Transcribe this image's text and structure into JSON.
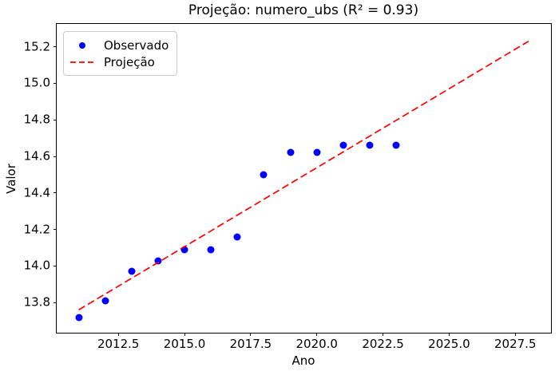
{
  "chart_data": {
    "type": "scatter",
    "title": "Projeção: numero_ubs (R² = 0.93)",
    "xlabel": "Ano",
    "ylabel": "Valor",
    "xlim": [
      2010.17,
      2028.85
    ],
    "ylim": [
      13.635,
      15.325
    ],
    "xticks": [
      2012.5,
      2015.0,
      2017.5,
      2020.0,
      2022.5,
      2025.0,
      2027.5
    ],
    "yticks": [
      13.8,
      14.0,
      14.2,
      14.4,
      14.6,
      14.8,
      15.0,
      15.2
    ],
    "grid": false,
    "legend_position": "upper left",
    "background_color": "#ffffff",
    "series": [
      {
        "name": "Observado",
        "type": "scatter",
        "marker": "circle",
        "color": "#0000ff",
        "x": [
          2011,
          2012,
          2013,
          2014,
          2015,
          2016,
          2017,
          2018,
          2019,
          2020,
          2021,
          2022,
          2023
        ],
        "y": [
          13.72,
          13.81,
          13.97,
          14.03,
          14.09,
          14.09,
          14.16,
          14.5,
          14.62,
          14.62,
          14.66,
          14.66,
          14.66
        ]
      },
      {
        "name": "Projeção",
        "type": "line",
        "linestyle": "dashed",
        "color": "#ff0000",
        "x": [
          2011,
          2028
        ],
        "y": [
          13.76,
          15.23
        ]
      }
    ]
  }
}
